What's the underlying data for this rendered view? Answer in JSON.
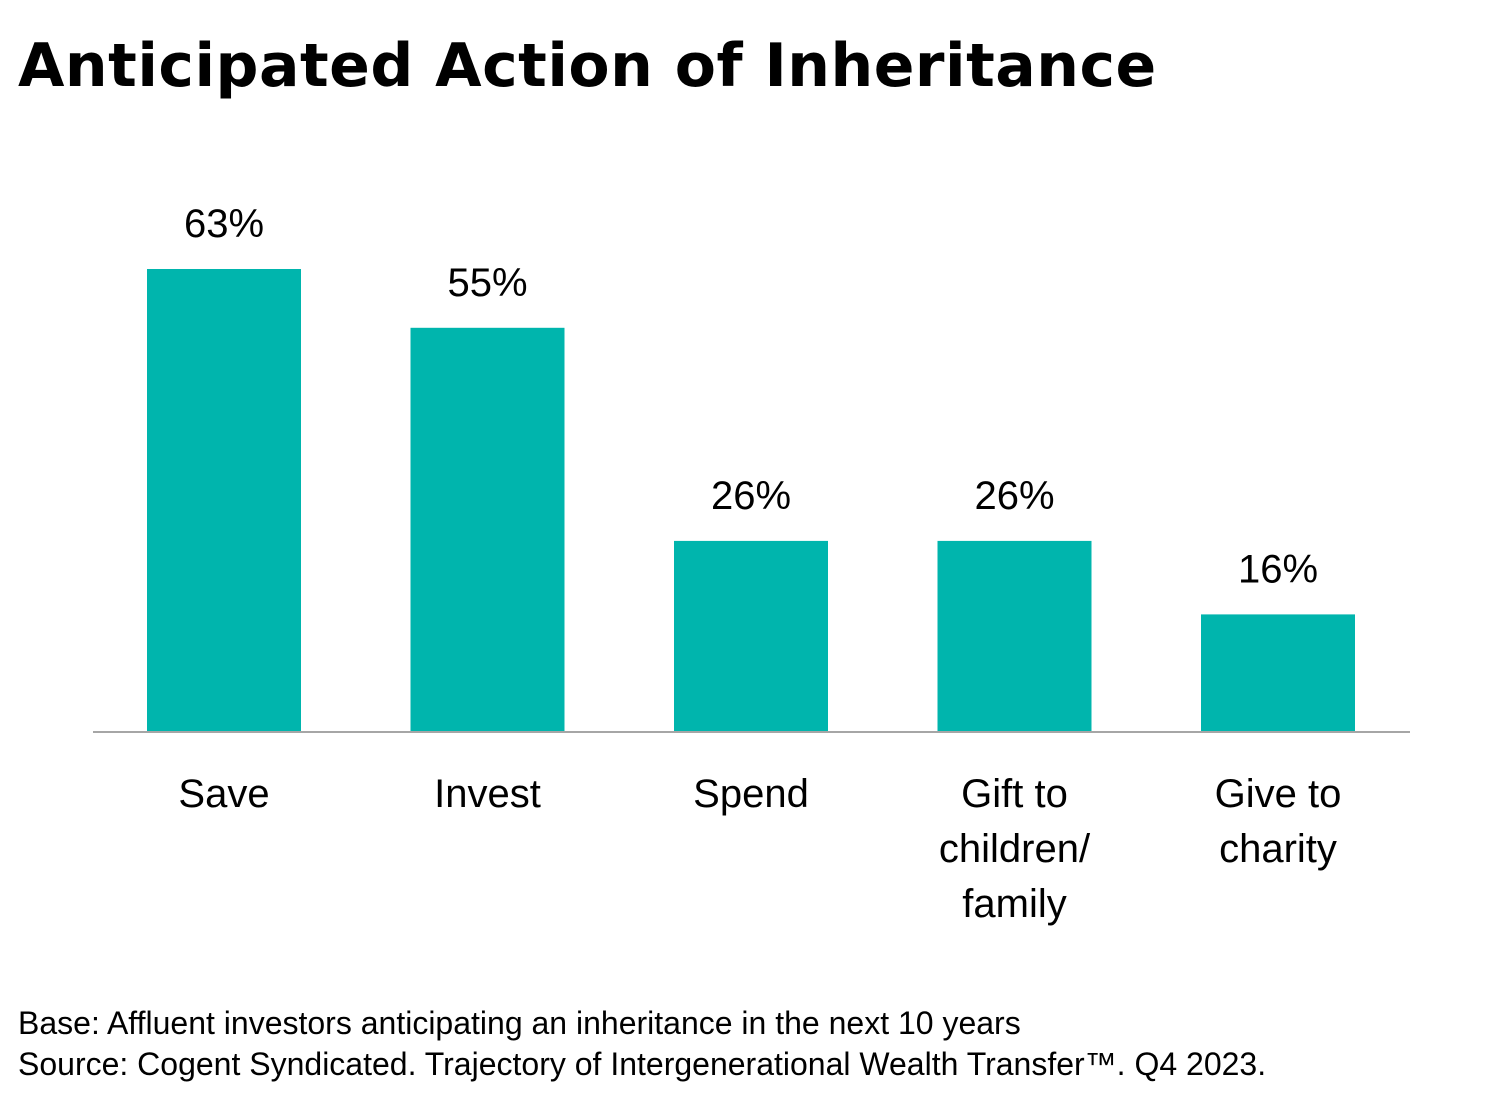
{
  "title": "Anticipated Action of Inheritance",
  "footnotes": {
    "base": "Base: Affluent investors anticipating an inheritance in the next 10 years",
    "source": "Source: Cogent Syndicated. Trajectory of Intergenerational Wealth Transfer™. Q4 2023."
  },
  "colors": {
    "bar": "#00b5ad",
    "axis": "#a6a6a6"
  },
  "chart_data": {
    "type": "bar",
    "categories": [
      "Save",
      "Invest",
      "Spend",
      "Gift to children/ family",
      "Give to charity"
    ],
    "category_lines": [
      [
        "Save"
      ],
      [
        "Invest"
      ],
      [
        "Spend"
      ],
      [
        "Gift to",
        "children/",
        "family"
      ],
      [
        "Give to",
        "charity"
      ]
    ],
    "values": [
      63,
      55,
      26,
      26,
      16
    ],
    "value_labels": [
      "63%",
      "55%",
      "26%",
      "26%",
      "16%"
    ],
    "unit": "%",
    "ylim": [
      0,
      63
    ],
    "grid": false,
    "legend": "none"
  }
}
